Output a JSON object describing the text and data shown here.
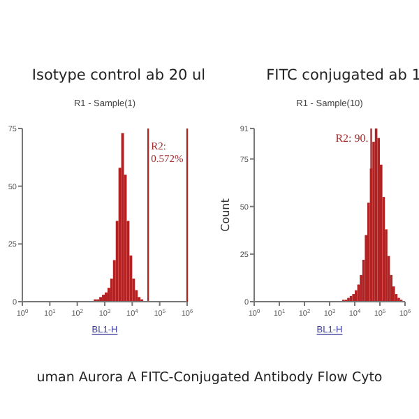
{
  "chart_data": [
    {
      "type": "histogram",
      "title": "Isotype control ab 20 ul",
      "subtitle": "R1 - Sample(1)",
      "xlabel": "BL1-H",
      "log": "x",
      "color": "#b22222",
      "xlim": [
        1,
        1000000
      ],
      "xticks": [
        {
          "value": 1,
          "label": "10$^{0}$"
        },
        {
          "value": 10,
          "label": "10$^{1}$"
        },
        {
          "value": 100,
          "label": "10$^{2}$"
        },
        {
          "value": 1000,
          "label": "10$^{3}$"
        },
        {
          "value": 10000,
          "label": "10$^{4}$"
        },
        {
          "value": 100000,
          "label": "10$^{5}$"
        },
        {
          "value": 1000000,
          "label": "10$^{6}$"
        }
      ],
      "ylim": [
        0,
        75
      ],
      "yticks": [
        0,
        25,
        50,
        75
      ],
      "bins": [
        398,
        501,
        631,
        794,
        1000,
        1259,
        1585,
        1995,
        2512,
        3162,
        3981,
        5012,
        6310,
        7943,
        10000,
        12589,
        15849,
        19953,
        25119
      ],
      "values": [
        1,
        1,
        2,
        3,
        4,
        6,
        10,
        18,
        35,
        58,
        73,
        55,
        35,
        20,
        10,
        5,
        2,
        1
      ],
      "ref_lines": [
        {
          "axis": "x",
          "value": 38000,
          "color": "#a52a2a"
        },
        {
          "axis": "x",
          "value": 1000000,
          "color": "#a52a2a"
        }
      ],
      "annotations": [
        {
          "text": "R2: 0.572%",
          "x": 38000,
          "y": 66
        },
        "uman Aurora A FITC-Conjugated Antibody Flow Cyto"
      ]
    },
    {
      "type": "histogram",
      "title": "FITC conjugated ab 1",
      "subtitle": "R1 - Sample(10)",
      "xlabel": "BL1-H",
      "ylabel": "Count",
      "log": "x",
      "color": "#b22222",
      "xlim": [
        1,
        1000000
      ],
      "xticks": [
        {
          "value": 1,
          "label": "10$^{0}$"
        },
        {
          "value": 10,
          "label": "10$^{1}$"
        },
        {
          "value": 100,
          "label": "10$^{2}$"
        },
        {
          "value": 1000,
          "label": "10$^{3}$"
        },
        {
          "value": 10000,
          "label": "10$^{4}$"
        },
        {
          "value": 100000,
          "label": "10$^{5}$"
        },
        {
          "value": 1000000,
          "label": "10$^{6}$"
        }
      ],
      "ylim": [
        0,
        91
      ],
      "yticks": [
        0,
        25,
        50,
        75,
        91
      ],
      "bins": [
        3162,
        3981,
        5012,
        6310,
        7943,
        10000,
        12589,
        15849,
        19953,
        25119,
        31623,
        39811,
        50119,
        63096,
        79433,
        100000,
        125893,
        158489,
        199526,
        251189,
        316228,
        398107,
        501187,
        630957,
        794328
      ],
      "values": [
        1,
        1,
        2,
        3,
        4,
        6,
        9,
        14,
        22,
        35,
        52,
        70,
        84,
        91,
        86,
        72,
        55,
        38,
        24,
        14,
        8,
        4,
        2,
        1
      ],
      "ref_lines": [
        {
          "axis": "x",
          "value": 45000,
          "color": "#a52a2a"
        }
      ],
      "annotations": [
        {
          "text": "R2: 90.",
          "x": 45000,
          "y": 84
        }
      ]
    }
  ]
}
